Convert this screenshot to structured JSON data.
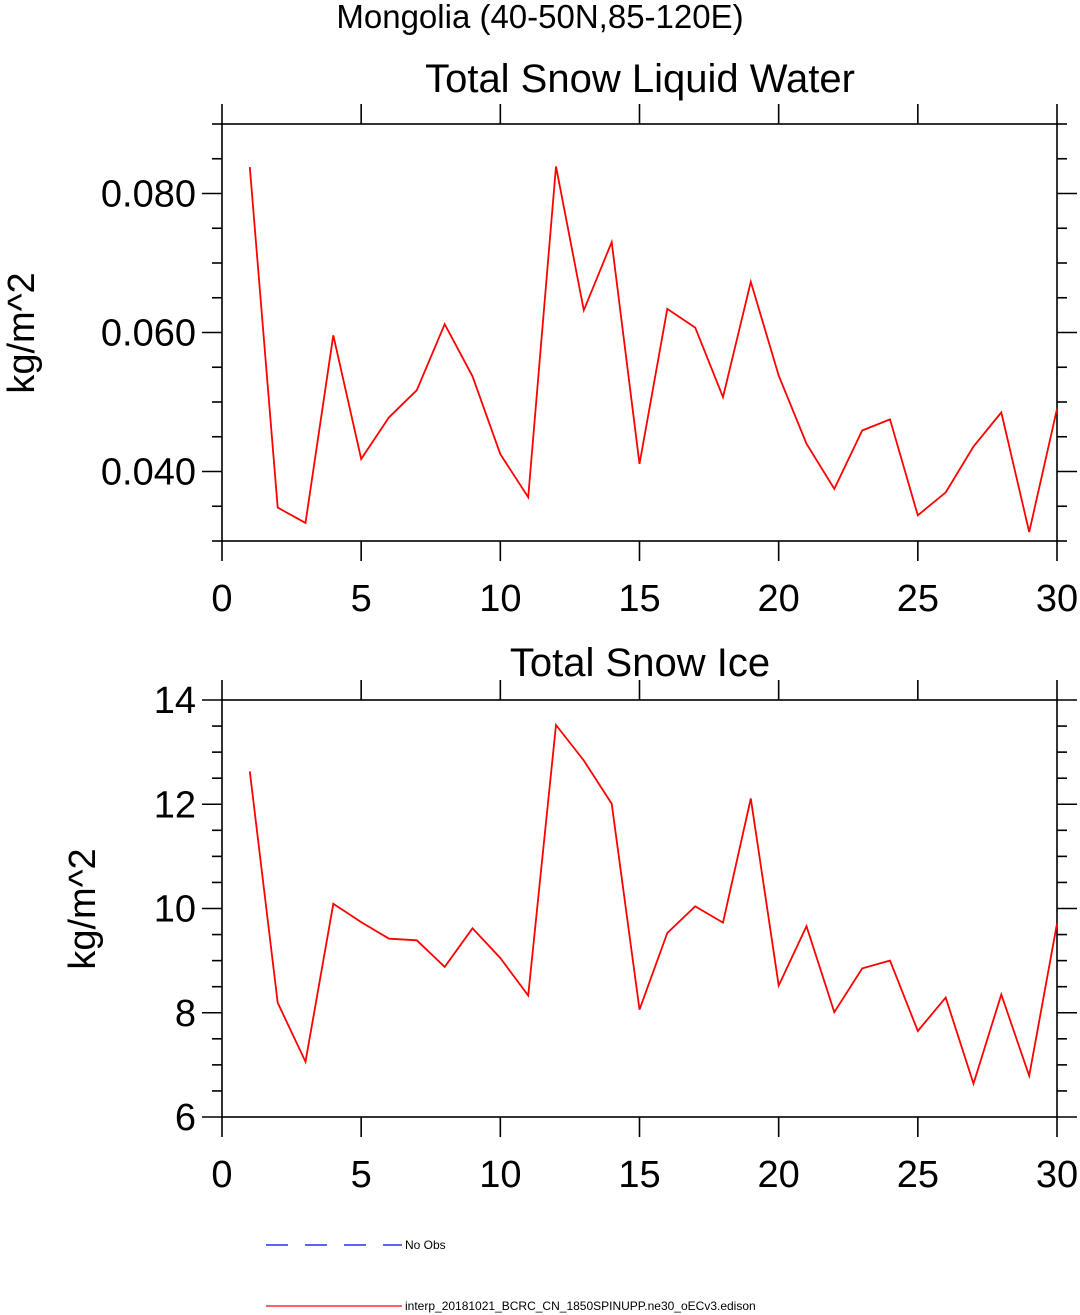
{
  "figure_title": "Mongolia (40-50N,85-120E)",
  "chart_data": [
    {
      "type": "line",
      "title": "Total Snow Liquid Water",
      "xlabel": "",
      "ylabel": "kg/m^2",
      "xlim": [
        0,
        30
      ],
      "ylim": [
        0.03,
        0.09
      ],
      "x_ticks": [
        "0",
        "5",
        "10",
        "15",
        "20",
        "25",
        "30"
      ],
      "y_ticks": [
        "0.040",
        "0.060",
        "0.080"
      ],
      "series": [
        {
          "name": "interp_20181021_BCRC_CN_1850SPINUPP.ne30_oECv3.edison",
          "color": "#ff0000",
          "x": [
            1,
            2,
            3,
            4,
            5,
            6,
            7,
            8,
            9,
            10,
            11,
            12,
            13,
            14,
            15,
            16,
            17,
            18,
            19,
            20,
            21,
            22,
            23,
            24,
            25,
            26,
            27,
            28,
            29,
            30
          ],
          "values": [
            0.0838,
            0.0348,
            0.0326,
            0.0596,
            0.0418,
            0.0478,
            0.0517,
            0.0612,
            0.0537,
            0.0425,
            0.0363,
            0.0839,
            0.0632,
            0.073,
            0.0411,
            0.0634,
            0.0607,
            0.0507,
            0.0673,
            0.0538,
            0.044,
            0.0375,
            0.0459,
            0.0475,
            0.0337,
            0.037,
            0.0436,
            0.0485,
            0.0313,
            0.049
          ]
        }
      ]
    },
    {
      "type": "line",
      "title": "Total Snow Ice",
      "xlabel": "",
      "ylabel": "kg/m^2",
      "xlim": [
        0,
        30
      ],
      "ylim": [
        6,
        14
      ],
      "x_ticks": [
        "0",
        "5",
        "10",
        "15",
        "20",
        "25",
        "30"
      ],
      "y_ticks": [
        "6",
        "8",
        "10",
        "12",
        "14"
      ],
      "series": [
        {
          "name": "interp_20181021_BCRC_CN_1850SPINUPP.ne30_oECv3.edison",
          "color": "#ff0000",
          "x": [
            1,
            2,
            3,
            4,
            5,
            6,
            7,
            8,
            9,
            10,
            11,
            12,
            13,
            14,
            15,
            16,
            17,
            18,
            19,
            20,
            21,
            22,
            23,
            24,
            25,
            26,
            27,
            28,
            29,
            30
          ],
          "values": [
            12.63,
            8.19,
            7.06,
            10.09,
            9.74,
            9.42,
            9.39,
            8.88,
            9.62,
            9.05,
            8.33,
            13.52,
            12.84,
            12.01,
            8.06,
            9.53,
            10.04,
            9.73,
            12.11,
            8.52,
            9.66,
            8.01,
            8.85,
            9.0,
            7.65,
            8.29,
            6.64,
            8.35,
            6.79,
            9.71
          ]
        }
      ]
    }
  ],
  "legend": [
    {
      "label": "No Obs",
      "color": "#0000ff",
      "style": "dashed"
    },
    {
      "label": "interp_20181021_BCRC_CN_1850SPINUPP.ne30_oECv3.edison",
      "color": "#ff0000",
      "style": "solid"
    }
  ]
}
